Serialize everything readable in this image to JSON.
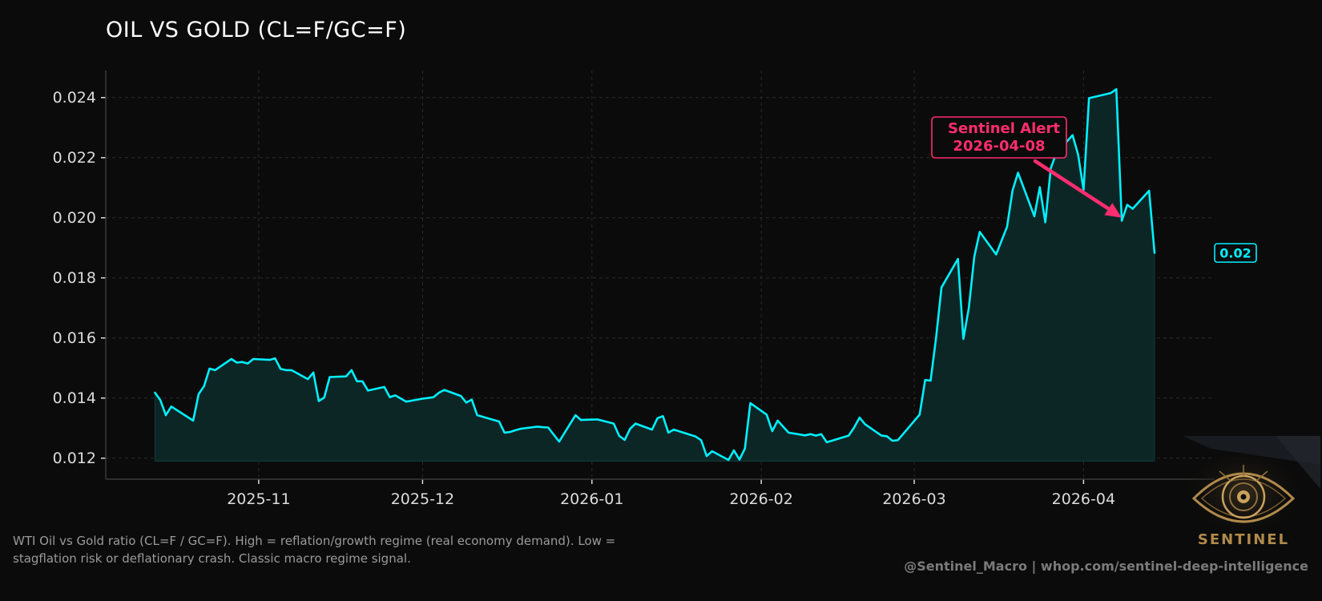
{
  "chart_data": {
    "type": "area",
    "title": "OIL VS GOLD (CL=F/GC=F)",
    "xlabel": "",
    "ylabel": "",
    "x_type": "date",
    "xlim": [
      "2025-10-04",
      "2026-04-25"
    ],
    "ylim": [
      0.0113,
      0.0249
    ],
    "x_ticks": [
      "2025-11-01",
      "2025-12-01",
      "2026-01-01",
      "2026-02-01",
      "2026-03-01",
      "2026-04-01"
    ],
    "x_tick_labels": [
      "2025-11",
      "2025-12",
      "2026-01",
      "2026-02",
      "2026-03",
      "2026-04"
    ],
    "y_ticks": [
      0.012,
      0.014,
      0.016,
      0.018,
      0.02,
      0.022,
      0.024
    ],
    "y_tick_labels": [
      "0.012",
      "0.014",
      "0.016",
      "0.018",
      "0.020",
      "0.022",
      "0.024"
    ],
    "grid": true,
    "series": [
      {
        "color": "#00f0ff",
        "fill_color": "#0c2626",
        "points": [
          [
            "2025-10-13",
            0.01418
          ],
          [
            "2025-10-14",
            0.01393
          ],
          [
            "2025-10-15",
            0.01343
          ],
          [
            "2025-10-16",
            0.01372
          ],
          [
            "2025-10-20",
            0.01325
          ],
          [
            "2025-10-21",
            0.01413
          ],
          [
            "2025-10-22",
            0.0144
          ],
          [
            "2025-10-23",
            0.01498
          ],
          [
            "2025-10-24",
            0.01493
          ],
          [
            "2025-10-27",
            0.0153
          ],
          [
            "2025-10-28",
            0.01518
          ],
          [
            "2025-10-29",
            0.0152
          ],
          [
            "2025-10-30",
            0.01515
          ],
          [
            "2025-10-31",
            0.0153
          ],
          [
            "2025-11-03",
            0.01527
          ],
          [
            "2025-11-04",
            0.01532
          ],
          [
            "2025-11-05",
            0.01497
          ],
          [
            "2025-11-06",
            0.01493
          ],
          [
            "2025-11-07",
            0.01493
          ],
          [
            "2025-11-10",
            0.01463
          ],
          [
            "2025-11-11",
            0.01485
          ],
          [
            "2025-11-12",
            0.0139
          ],
          [
            "2025-11-13",
            0.01402
          ],
          [
            "2025-11-14",
            0.0147
          ],
          [
            "2025-11-17",
            0.01472
          ],
          [
            "2025-11-18",
            0.01493
          ],
          [
            "2025-11-19",
            0.01456
          ],
          [
            "2025-11-20",
            0.01456
          ],
          [
            "2025-11-21",
            0.01425
          ],
          [
            "2025-11-24",
            0.01437
          ],
          [
            "2025-11-25",
            0.01403
          ],
          [
            "2025-11-26",
            0.01409
          ],
          [
            "2025-11-28",
            0.01388
          ],
          [
            "2025-12-01",
            0.01398
          ],
          [
            "2025-12-02",
            0.014
          ],
          [
            "2025-12-03",
            0.01403
          ],
          [
            "2025-12-04",
            0.01418
          ],
          [
            "2025-12-05",
            0.01427
          ],
          [
            "2025-12-08",
            0.01407
          ],
          [
            "2025-12-09",
            0.01385
          ],
          [
            "2025-12-10",
            0.01395
          ],
          [
            "2025-12-11",
            0.01343
          ],
          [
            "2025-12-15",
            0.01322
          ],
          [
            "2025-12-16",
            0.01285
          ],
          [
            "2025-12-17",
            0.01287
          ],
          [
            "2025-12-18",
            0.01293
          ],
          [
            "2025-12-19",
            0.01298
          ],
          [
            "2025-12-22",
            0.01305
          ],
          [
            "2025-12-23",
            0.01303
          ],
          [
            "2025-12-24",
            0.01302
          ],
          [
            "2025-12-26",
            0.01255
          ],
          [
            "2025-12-29",
            0.01343
          ],
          [
            "2025-12-30",
            0.01327
          ],
          [
            "2025-12-31",
            0.01328
          ],
          [
            "2026-01-02",
            0.01329
          ],
          [
            "2026-01-05",
            0.01315
          ],
          [
            "2026-01-06",
            0.01274
          ],
          [
            "2026-01-07",
            0.01261
          ],
          [
            "2026-01-08",
            0.01298
          ],
          [
            "2026-01-09",
            0.01315
          ],
          [
            "2026-01-12",
            0.01295
          ],
          [
            "2026-01-13",
            0.01333
          ],
          [
            "2026-01-14",
            0.0134
          ],
          [
            "2026-01-15",
            0.01285
          ],
          [
            "2026-01-16",
            0.01295
          ],
          [
            "2026-01-20",
            0.01272
          ],
          [
            "2026-01-21",
            0.0126
          ],
          [
            "2026-01-22",
            0.01207
          ],
          [
            "2026-01-23",
            0.01223
          ],
          [
            "2026-01-26",
            0.01194
          ],
          [
            "2026-01-27",
            0.01226
          ],
          [
            "2026-01-28",
            0.01195
          ],
          [
            "2026-01-29",
            0.01232
          ],
          [
            "2026-01-30",
            0.01383
          ],
          [
            "2026-02-02",
            0.01345
          ],
          [
            "2026-02-03",
            0.0129
          ],
          [
            "2026-02-04",
            0.01325
          ],
          [
            "2026-02-05",
            0.01305
          ],
          [
            "2026-02-06",
            0.01285
          ],
          [
            "2026-02-09",
            0.01276
          ],
          [
            "2026-02-10",
            0.0128
          ],
          [
            "2026-02-11",
            0.01275
          ],
          [
            "2026-02-12",
            0.0128
          ],
          [
            "2026-02-13",
            0.01253
          ],
          [
            "2026-02-17",
            0.01275
          ],
          [
            "2026-02-18",
            0.01302
          ],
          [
            "2026-02-19",
            0.01335
          ],
          [
            "2026-02-20",
            0.01313
          ],
          [
            "2026-02-23",
            0.01275
          ],
          [
            "2026-02-24",
            0.01273
          ],
          [
            "2026-02-25",
            0.01258
          ],
          [
            "2026-02-26",
            0.0126
          ],
          [
            "2026-03-02",
            0.01345
          ],
          [
            "2026-03-03",
            0.0146
          ],
          [
            "2026-03-04",
            0.01458
          ],
          [
            "2026-03-05",
            0.016
          ],
          [
            "2026-03-06",
            0.01768
          ],
          [
            "2026-03-09",
            0.01863
          ],
          [
            "2026-03-10",
            0.01597
          ],
          [
            "2026-03-11",
            0.017
          ],
          [
            "2026-03-12",
            0.0187
          ],
          [
            "2026-03-13",
            0.01953
          ],
          [
            "2026-03-16",
            0.01878
          ],
          [
            "2026-03-18",
            0.0197
          ],
          [
            "2026-03-19",
            0.0209
          ],
          [
            "2026-03-20",
            0.0215
          ],
          [
            "2026-03-23",
            0.02005
          ],
          [
            "2026-03-24",
            0.02102
          ],
          [
            "2026-03-25",
            0.01985
          ],
          [
            "2026-03-26",
            0.02165
          ],
          [
            "2026-03-27",
            0.02215
          ],
          [
            "2026-03-30",
            0.02275
          ],
          [
            "2026-03-31",
            0.0221
          ],
          [
            "2026-04-01",
            0.02093
          ],
          [
            "2026-04-02",
            0.02398
          ],
          [
            "2026-04-06",
            0.02415
          ],
          [
            "2026-04-07",
            0.02428
          ],
          [
            "2026-04-08",
            0.0199
          ],
          [
            "2026-04-09",
            0.02043
          ],
          [
            "2026-04-10",
            0.0203
          ],
          [
            "2026-04-13",
            0.0209
          ],
          [
            "2026-04-14",
            0.01883
          ]
        ]
      }
    ],
    "fill_baseline": 0.0119,
    "annotations": [
      {
        "text_lines": [
          "Sentinel Alert",
          "2026-04-08"
        ],
        "target": [
          "2026-04-08",
          0.02
        ],
        "color": "#ff2d6f"
      }
    ],
    "last_value_label": "0.02",
    "accent_color": "#00f0ff",
    "alert_color": "#ff2d6f",
    "grid_color": "#2a2a2a",
    "tick_color": "#dcdcdc"
  },
  "caption": "WTI Oil vs Gold ratio (CL=F / GC=F). High = reflation/growth regime (real economy demand). Low = stagflation risk or deflationary crash. Classic macro regime signal.",
  "footer": {
    "credit": "@Sentinel_Macro  |  whop.com/sentinel-deep-intelligence"
  },
  "brand": {
    "name": "SENTINEL",
    "logo_icon": "eye-icon",
    "color": "#b08a4a"
  }
}
